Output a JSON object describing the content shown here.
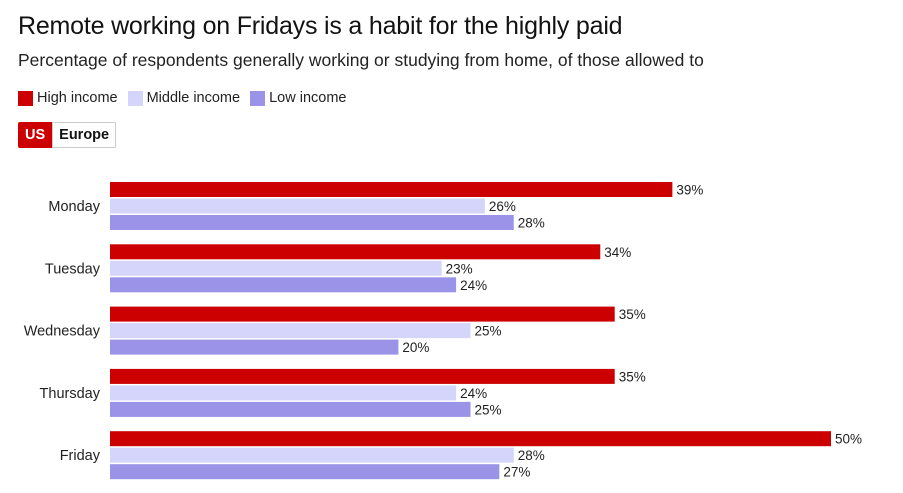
{
  "title": "Remote working on Fridays is a habit for the highly paid",
  "subtitle": "Percentage of respondents generally working or studying from home, of those allowed to",
  "toggle": {
    "options": [
      "US",
      "Europe"
    ],
    "selected": "US"
  },
  "colors": {
    "High income": "#cc0000",
    "Middle income": "#d5d5fb",
    "Low income": "#9b93e8"
  },
  "chart_data": {
    "type": "bar",
    "orientation": "horizontal",
    "categories": [
      "Monday",
      "Tuesday",
      "Wednesday",
      "Thursday",
      "Friday"
    ],
    "series": [
      {
        "name": "High income",
        "values": [
          39,
          34,
          35,
          35,
          50
        ]
      },
      {
        "name": "Middle income",
        "values": [
          26,
          23,
          25,
          24,
          28
        ]
      },
      {
        "name": "Low income",
        "values": [
          28,
          24,
          20,
          25,
          27
        ]
      }
    ],
    "unit": "%",
    "xlim": [
      0,
      50
    ],
    "grid": false,
    "legend": "top-left"
  }
}
